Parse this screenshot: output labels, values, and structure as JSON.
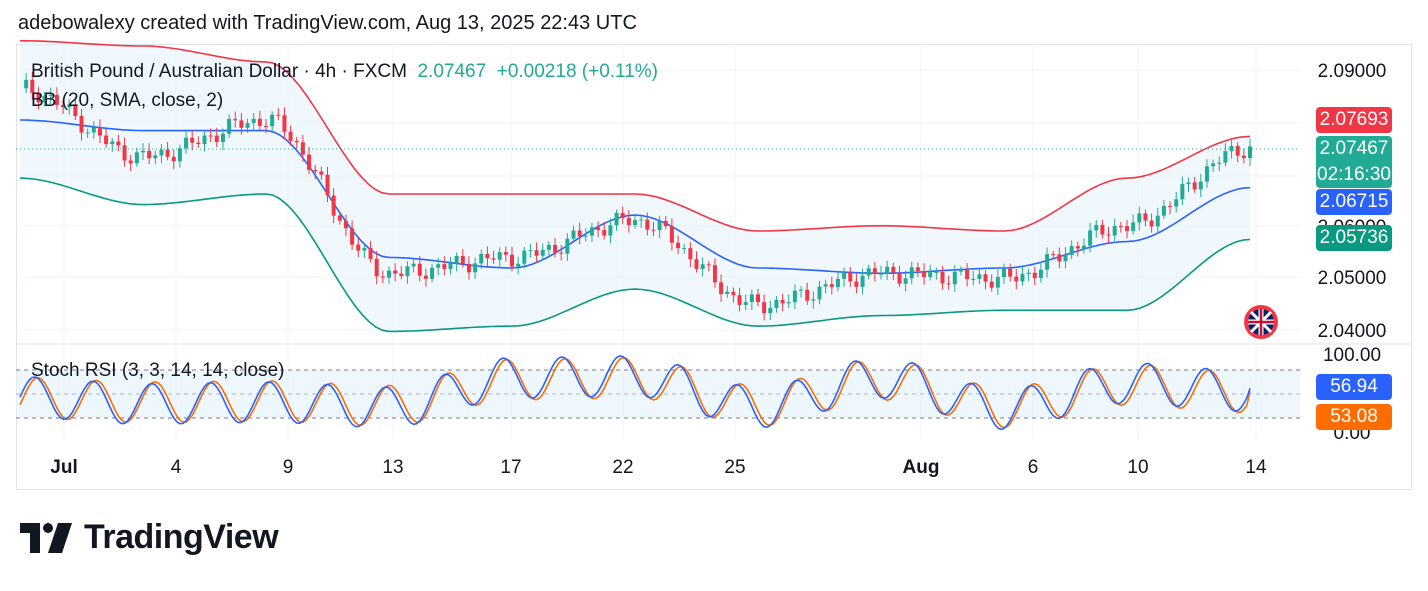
{
  "header": {
    "attribution": "adebowalexy created with TradingView.com, Aug 13, 2025 22:43 UTC"
  },
  "legend": {
    "symbol": "British Pound / Australian Dollar · 4h · FXCM",
    "price": "2.07467",
    "change": "+0.00218 (+0.11%)",
    "bb_label": "BB (20, SMA, close, 2)",
    "stoch_label": "Stoch RSI (3, 3, 14, 14, close)"
  },
  "price_axis": {
    "ticks": [
      "2.09000",
      "2.06000",
      "2.05000",
      "2.04000"
    ],
    "badges": {
      "upper": "2.07693",
      "last": "2.07467",
      "countdown": "02:16:30",
      "middle": "2.06715",
      "lower": "2.05736"
    }
  },
  "stoch_axis": {
    "ticks": [
      "100.00",
      "0.00"
    ],
    "badges": {
      "k": "56.94",
      "d": "53.08"
    }
  },
  "time_axis": [
    "Jul",
    "4",
    "9",
    "13",
    "17",
    "22",
    "25",
    "Aug",
    "6",
    "10",
    "14"
  ],
  "colors": {
    "up": "#22ab94",
    "down": "#f23645",
    "bb_upper": "#f23645",
    "bb_basis": "#2962ff",
    "bb_lower": "#089981",
    "k_line": "#2962ff",
    "d_line": "#ff6d00",
    "bb_fill": "#e3f2fd"
  },
  "brand": {
    "name": "TradingView"
  },
  "chart_data": [
    {
      "type": "candlestick",
      "title": "British Pound / Australian Dollar · 4h · FXCM",
      "ylim": [
        2.038,
        2.094
      ],
      "series": [
        {
          "name": "BB upper",
          "x": [
            "Jul 1",
            "Jul 4",
            "Jul 9",
            "Jul 13",
            "Jul 17",
            "Jul 22",
            "Jul 25",
            "Aug 1",
            "Aug 6",
            "Aug 10",
            "Aug 14"
          ],
          "values": [
            2.095,
            2.094,
            2.091,
            2.066,
            2.066,
            2.066,
            2.059,
            2.06,
            2.059,
            2.069,
            2.0769
          ]
        },
        {
          "name": "BB basis",
          "x": [
            "Jul 1",
            "Jul 4",
            "Jul 9",
            "Jul 13",
            "Jul 17",
            "Jul 22",
            "Jul 25",
            "Aug 1",
            "Aug 6",
            "Aug 10",
            "Aug 14"
          ],
          "values": [
            2.08,
            2.078,
            2.078,
            2.054,
            2.052,
            2.062,
            2.052,
            2.051,
            2.052,
            2.057,
            2.0672
          ]
        },
        {
          "name": "BB lower",
          "x": [
            "Jul 1",
            "Jul 4",
            "Jul 9",
            "Jul 13",
            "Jul 17",
            "Jul 22",
            "Jul 25",
            "Aug 1",
            "Aug 6",
            "Aug 10",
            "Aug 14"
          ],
          "values": [
            2.069,
            2.064,
            2.066,
            2.04,
            2.041,
            2.048,
            2.041,
            2.043,
            2.044,
            2.044,
            2.0574
          ]
        },
        {
          "name": "Close",
          "x": [
            "Jul 1",
            "Jul 4",
            "Jul 9",
            "Jul 13",
            "Jul 17",
            "Jul 22",
            "Jul 25",
            "Aug 1",
            "Aug 6",
            "Aug 10",
            "Aug 14"
          ],
          "values": [
            2.086,
            2.073,
            2.08,
            2.051,
            2.054,
            2.061,
            2.045,
            2.051,
            2.05,
            2.06,
            2.0747
          ]
        }
      ]
    },
    {
      "type": "line",
      "title": "Stoch RSI (3, 3, 14, 14, close)",
      "ylim": [
        0,
        100
      ],
      "series": [
        {
          "name": "K",
          "x": [
            "Jul 1",
            "Jul 4",
            "Jul 9",
            "Jul 13",
            "Jul 17",
            "Jul 22",
            "Jul 25",
            "Aug 1",
            "Aug 6",
            "Aug 10",
            "Aug 14"
          ],
          "values": [
            40,
            20,
            25,
            10,
            95,
            100,
            10,
            95,
            5,
            80,
            56.94
          ]
        },
        {
          "name": "D",
          "x": [
            "Jul 1",
            "Jul 4",
            "Jul 9",
            "Jul 13",
            "Jul 17",
            "Jul 22",
            "Jul 25",
            "Aug 1",
            "Aug 6",
            "Aug 10",
            "Aug 14"
          ],
          "values": [
            38,
            25,
            28,
            15,
            90,
            95,
            15,
            90,
            10,
            75,
            53.08
          ]
        }
      ]
    }
  ]
}
